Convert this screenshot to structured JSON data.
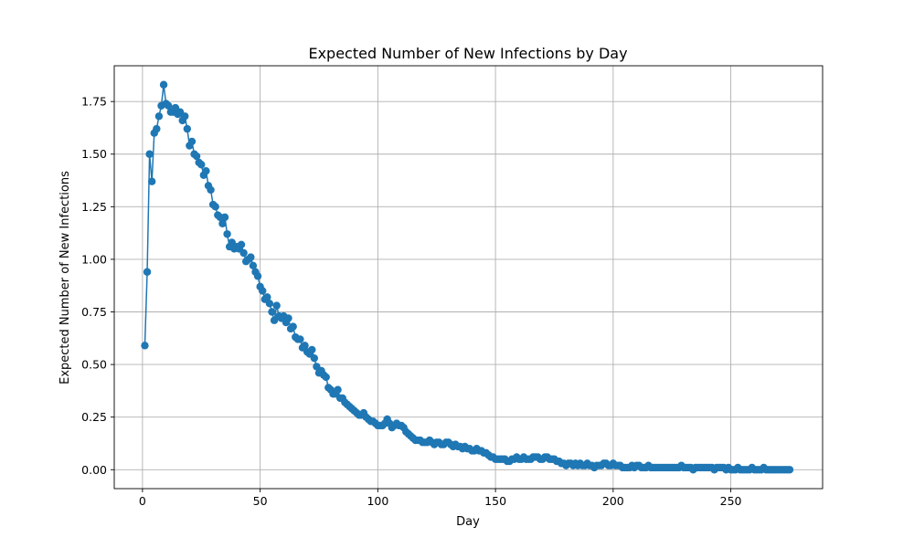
{
  "chart_data": {
    "type": "line",
    "title": "Expected Number of New Infections by Day",
    "xlabel": "Day",
    "ylabel": "Expected Number of New Infections",
    "xlim": [
      -12,
      289
    ],
    "ylim": [
      -0.09,
      1.92
    ],
    "xticks": [
      0,
      50,
      100,
      150,
      200,
      250
    ],
    "yticks": [
      0.0,
      0.25,
      0.5,
      0.75,
      1.0,
      1.25,
      1.5,
      1.75
    ],
    "xtick_labels": [
      "0",
      "50",
      "100",
      "150",
      "200",
      "250"
    ],
    "ytick_labels": [
      "0.00",
      "0.25",
      "0.50",
      "0.75",
      "1.00",
      "1.25",
      "1.50",
      "1.75"
    ],
    "grid": true,
    "marker": "circle",
    "color": "#1f77b4",
    "x_start": 1,
    "x_step": 1,
    "series": [
      {
        "values": [
          0.59,
          0.94,
          1.5,
          1.37,
          1.6,
          1.62,
          1.68,
          1.73,
          1.83,
          1.74,
          1.73,
          1.7,
          1.7,
          1.72,
          1.69,
          1.7,
          1.66,
          1.68,
          1.62,
          1.54,
          1.56,
          1.5,
          1.49,
          1.46,
          1.45,
          1.4,
          1.42,
          1.35,
          1.33,
          1.26,
          1.25,
          1.21,
          1.2,
          1.17,
          1.2,
          1.12,
          1.06,
          1.08,
          1.05,
          1.06,
          1.05,
          1.07,
          1.03,
          0.99,
          1.0,
          1.01,
          0.97,
          0.94,
          0.92,
          0.87,
          0.85,
          0.81,
          0.82,
          0.79,
          0.75,
          0.71,
          0.78,
          0.73,
          0.72,
          0.73,
          0.7,
          0.72,
          0.67,
          0.68,
          0.63,
          0.62,
          0.62,
          0.58,
          0.59,
          0.56,
          0.55,
          0.57,
          0.53,
          0.49,
          0.46,
          0.47,
          0.45,
          0.44,
          0.39,
          0.38,
          0.36,
          0.36,
          0.38,
          0.34,
          0.34,
          0.32,
          0.31,
          0.3,
          0.29,
          0.28,
          0.27,
          0.26,
          0.26,
          0.27,
          0.25,
          0.24,
          0.23,
          0.23,
          0.22,
          0.21,
          0.21,
          0.21,
          0.22,
          0.24,
          0.22,
          0.2,
          0.21,
          0.22,
          0.21,
          0.21,
          0.2,
          0.18,
          0.17,
          0.16,
          0.15,
          0.14,
          0.14,
          0.14,
          0.13,
          0.13,
          0.13,
          0.14,
          0.13,
          0.12,
          0.13,
          0.13,
          0.12,
          0.12,
          0.13,
          0.13,
          0.12,
          0.11,
          0.12,
          0.11,
          0.11,
          0.1,
          0.11,
          0.1,
          0.1,
          0.09,
          0.09,
          0.1,
          0.09,
          0.09,
          0.08,
          0.08,
          0.07,
          0.06,
          0.06,
          0.05,
          0.05,
          0.05,
          0.05,
          0.05,
          0.04,
          0.04,
          0.05,
          0.05,
          0.06,
          0.05,
          0.05,
          0.06,
          0.05,
          0.05,
          0.05,
          0.06,
          0.06,
          0.06,
          0.05,
          0.05,
          0.06,
          0.06,
          0.05,
          0.05,
          0.05,
          0.04,
          0.04,
          0.03,
          0.03,
          0.02,
          0.03,
          0.03,
          0.02,
          0.03,
          0.02,
          0.03,
          0.02,
          0.02,
          0.03,
          0.02,
          0.02,
          0.01,
          0.02,
          0.02,
          0.02,
          0.03,
          0.03,
          0.02,
          0.02,
          0.03,
          0.02,
          0.02,
          0.02,
          0.01,
          0.01,
          0.01,
          0.01,
          0.02,
          0.01,
          0.02,
          0.02,
          0.01,
          0.01,
          0.01,
          0.02,
          0.01,
          0.01,
          0.01,
          0.01,
          0.01,
          0.01,
          0.01,
          0.01,
          0.01,
          0.01,
          0.01,
          0.01,
          0.01,
          0.02,
          0.01,
          0.01,
          0.01,
          0.01,
          0.0,
          0.01,
          0.01,
          0.01,
          0.01,
          0.01,
          0.01,
          0.01,
          0.01,
          0.0,
          0.01,
          0.01,
          0.01,
          0.01,
          0.0,
          0.01,
          0.0,
          0.0,
          0.0,
          0.01,
          0.0,
          0.0,
          0.0,
          0.0,
          0.0,
          0.01,
          0.0,
          0.0,
          0.0,
          0.0,
          0.01,
          0.0,
          0.0,
          0.0,
          0.0,
          0.0,
          0.0,
          0.0,
          0.0,
          0.0,
          0.0,
          0.0
        ]
      }
    ]
  }
}
